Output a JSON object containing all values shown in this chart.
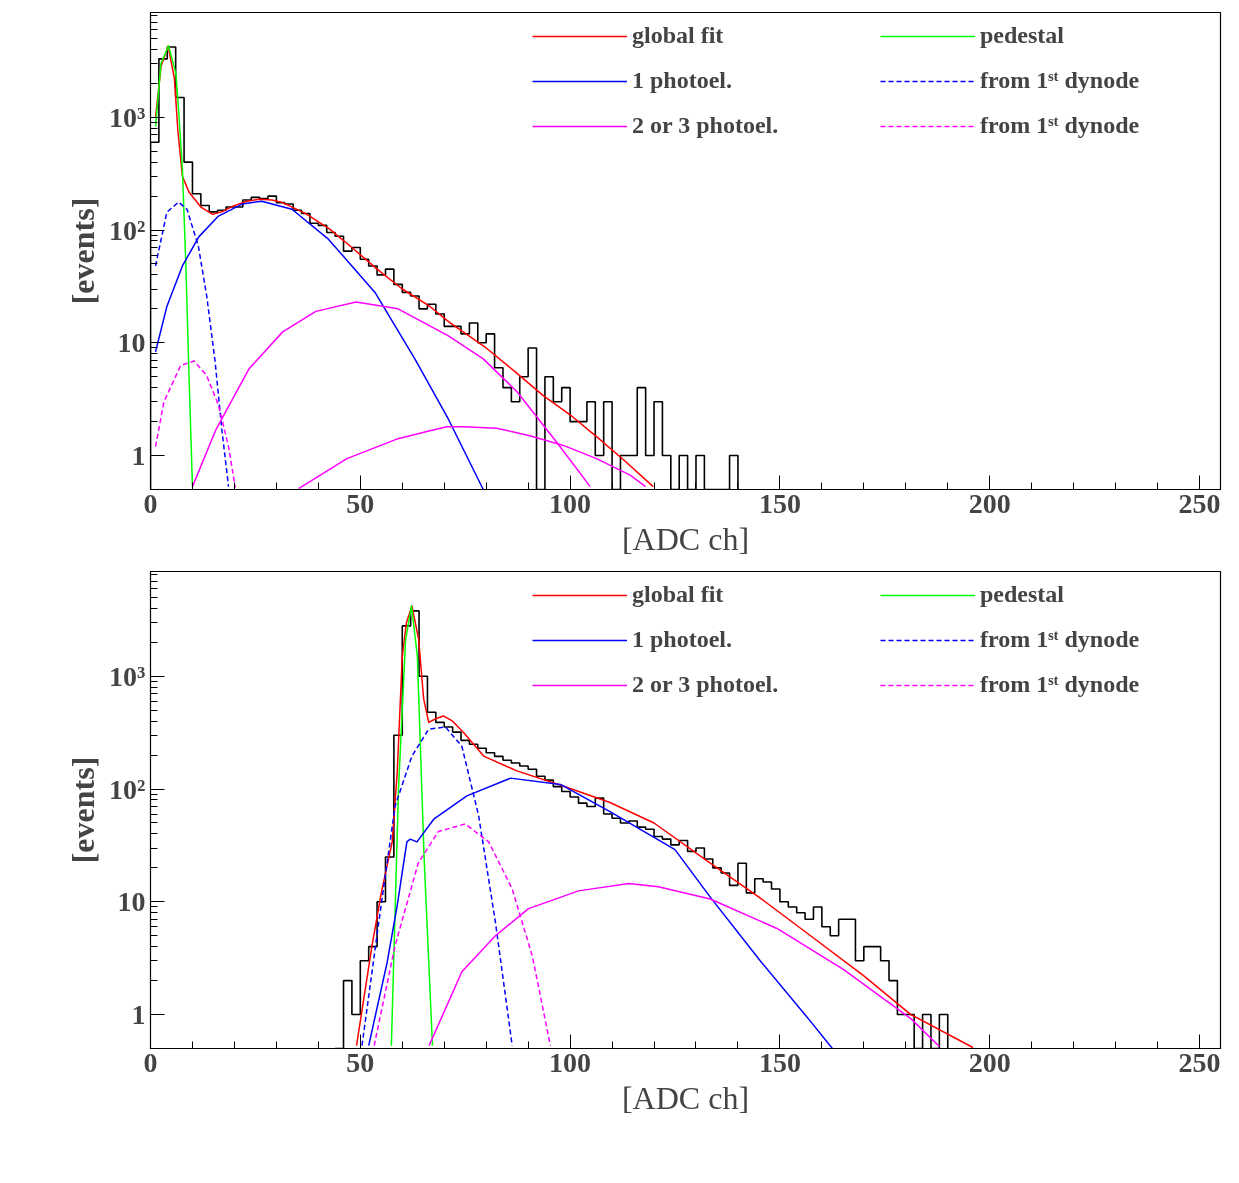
{
  "chart_data": [
    {
      "type": "line",
      "xlabel": "[ADC ch]",
      "ylabel": "[events]",
      "log": "y",
      "legend": "top right",
      "xlim": [
        0,
        255
      ],
      "ylim": [
        0.5,
        8500
      ],
      "xticks": [
        0,
        {
          "value": 10,
          "label": null
        },
        {
          "value": 20,
          "label": null
        },
        {
          "value": 30,
          "label": null
        },
        {
          "value": 40,
          "label": null
        },
        50,
        {
          "value": 60,
          "label": null
        },
        {
          "value": 70,
          "label": null
        },
        {
          "value": 80,
          "label": null
        },
        {
          "value": 90,
          "label": null
        },
        100,
        {
          "value": 110,
          "label": null
        },
        {
          "value": 120,
          "label": null
        },
        {
          "value": 130,
          "label": null
        },
        {
          "value": 140,
          "label": null
        },
        150,
        {
          "value": 160,
          "label": null
        },
        {
          "value": 170,
          "label": null
        },
        {
          "value": 180,
          "label": null
        },
        {
          "value": 190,
          "label": null
        },
        200,
        {
          "value": 210,
          "label": null
        },
        {
          "value": 220,
          "label": null
        },
        {
          "value": 230,
          "label": null
        },
        {
          "value": 240,
          "label": null
        },
        250
      ],
      "yticks": [
        1,
        {
          "value": 2,
          "label": null
        },
        {
          "value": 3,
          "label": null
        },
        {
          "value": 4,
          "label": null
        },
        {
          "value": 5,
          "label": null
        },
        {
          "value": 6,
          "label": null
        },
        {
          "value": 7,
          "label": null
        },
        {
          "value": 8,
          "label": null
        },
        {
          "value": 9,
          "label": null
        },
        10,
        {
          "value": 20,
          "label": null
        },
        {
          "value": 30,
          "label": null
        },
        {
          "value": 40,
          "label": null
        },
        {
          "value": 50,
          "label": null
        },
        {
          "value": 60,
          "label": null
        },
        {
          "value": 70,
          "label": null
        },
        {
          "value": 80,
          "label": null
        },
        {
          "value": 90,
          "label": null
        },
        {
          "value": 100,
          "label": "10²"
        },
        {
          "value": 200,
          "label": null
        },
        {
          "value": 300,
          "label": null
        },
        {
          "value": 400,
          "label": null
        },
        {
          "value": 500,
          "label": null
        },
        {
          "value": 600,
          "label": null
        },
        {
          "value": 700,
          "label": null
        },
        {
          "value": 800,
          "label": null
        },
        {
          "value": 900,
          "label": null
        },
        {
          "value": 1000,
          "label": "10³"
        },
        {
          "value": 2000,
          "label": null
        },
        {
          "value": 3000,
          "label": null
        },
        {
          "value": 4000,
          "label": null
        },
        {
          "value": 5000,
          "label": null
        },
        {
          "value": 6000,
          "label": null
        },
        {
          "value": 7000,
          "label": null
        },
        {
          "value": 8000,
          "label": null
        }
      ],
      "series": [
        {
          "type": "histogram",
          "color": "#000000",
          "bins": [
            0,
            2,
            4,
            6,
            8,
            10,
            12,
            14,
            16,
            18,
            20,
            22,
            24,
            26,
            28,
            30,
            32,
            34,
            36,
            38,
            40,
            42,
            44,
            46,
            48,
            50,
            52,
            54,
            56,
            58,
            60,
            62,
            64,
            66,
            68,
            70,
            72,
            74,
            76,
            78,
            80,
            82,
            84,
            86,
            88,
            90,
            92,
            94,
            96,
            98,
            100,
            102,
            104,
            106,
            108,
            110,
            112,
            114,
            116,
            118,
            120,
            122,
            124,
            126,
            128,
            130,
            132,
            134,
            136,
            138,
            140
          ],
          "values": [
            600,
            3300,
            4200,
            1500,
            400,
            210,
            165,
            145,
            150,
            160,
            160,
            185,
            195,
            190,
            200,
            175,
            170,
            150,
            140,
            115,
            110,
            95,
            88,
            65,
            70,
            55,
            48,
            40,
            45,
            33,
            28,
            26,
            20,
            22,
            18,
            14,
            14,
            12,
            15,
            10,
            12,
            6,
            4,
            3,
            5,
            9,
            null,
            5,
            3,
            4,
            2,
            2,
            3,
            1,
            3,
            null,
            1,
            1,
            4,
            1,
            3,
            1,
            null,
            1,
            null,
            1,
            null,
            null,
            null,
            1
          ]
        },
        {
          "name": "global fit",
          "color": "#ff0000",
          "line_style": "solid",
          "x": [
            1.2,
            2.5,
            4.2,
            5.7,
            6.5,
            7.6,
            9.2,
            12,
            14.8,
            17,
            19.6,
            23,
            26,
            29,
            31.5,
            37,
            42.7,
            48,
            54,
            60,
            66.6,
            71.4,
            80,
            87,
            93.6,
            100,
            107,
            113,
            119.8
          ],
          "values": [
            1000,
            2800,
            4300,
            2200,
            780,
            300,
            216,
            160,
            138,
            145,
            163,
            180,
            188,
            185,
            175,
            140,
            102,
            70,
            45,
            30,
            21,
            15,
            9,
            5.5,
            3.4,
            2.3,
            1.4,
            0.9,
            0.53
          ]
        },
        {
          "name": "pedestal",
          "color": "#00ff00",
          "line_style": "solid",
          "x": [
            1.2,
            2.5,
            4.3,
            6,
            6.5,
            7.6,
            8.4,
            9.2,
            10
          ],
          "values": [
            830,
            3000,
            4300,
            2500,
            1500,
            350,
            52,
            4.8,
            0.53
          ]
        },
        {
          "name": "1 photoel.",
          "color": "#0000ff",
          "line_style": "solid",
          "x": [
            1.2,
            3.9,
            7.6,
            11.5,
            16.2,
            21.8,
            26.5,
            33.7,
            42.4,
            53.5,
            63,
            71,
            79.3
          ],
          "values": [
            8.3,
            21,
            48,
            87,
            133,
            170,
            180,
            153,
            83,
            28,
            7.2,
            2.1,
            0.5
          ]
        },
        {
          "name": "from 1ˢᵗ dynode",
          "color": "#0000ff",
          "line_style": "dashed",
          "x": [
            1.2,
            3.9,
            6.7,
            8.7,
            11.4,
            13.4,
            15.4,
            17,
            18.6
          ],
          "values": [
            48,
            144,
            177,
            153,
            72,
            26,
            6.8,
            1.7,
            0.53
          ]
        },
        {
          "name": "2 or 3 photoel.",
          "color": "#ff00ff",
          "line_style": "solid",
          "x": [
            10,
            15.6,
            23.5,
            31.5,
            39.4,
            49,
            59,
            71,
            79.3,
            87.3,
            96.9,
            104.8
          ],
          "values": [
            0.53,
            1.7,
            5.9,
            12.5,
            19,
            23,
            20,
            11.5,
            7.2,
            3.7,
            1.3,
            0.53
          ]
        },
        {
          "name": "from 1ˢᵗ dynode",
          "color": "#ff00ff",
          "line_style": "dashed",
          "x": [
            1.2,
            3.2,
            7.2,
            10.4,
            13.4,
            16.2,
            18.6,
            20.2
          ],
          "values": [
            1.2,
            3,
            6.3,
            6.9,
            5.1,
            2.8,
            1.2,
            0.52
          ]
        },
        {
          "color": "#ff00ff",
          "line_style": "solid",
          "x": [
            35.3,
            46.8,
            58.7,
            66.6,
            70.6,
            74.5,
            82.5,
            90.4,
            98.4,
            106.3,
            114.3,
            118
          ],
          "values": [
            0.51,
            0.94,
            1.4,
            1.66,
            1.8,
            1.8,
            1.75,
            1.5,
            1.23,
            0.94,
            0.67,
            0.53
          ]
        }
      ]
    },
    {
      "type": "line",
      "xlabel": "[ADC ch]",
      "ylabel": "[events]",
      "log": "y",
      "legend": "top right",
      "xlim": [
        0,
        255
      ],
      "ylim": [
        0.5,
        8500
      ],
      "xticks": [
        0,
        {
          "value": 10,
          "label": null
        },
        {
          "value": 20,
          "label": null
        },
        {
          "value": 30,
          "label": null
        },
        {
          "value": 40,
          "label": null
        },
        50,
        {
          "value": 60,
          "label": null
        },
        {
          "value": 70,
          "label": null
        },
        {
          "value": 80,
          "label": null
        },
        {
          "value": 90,
          "label": null
        },
        100,
        {
          "value": 110,
          "label": null
        },
        {
          "value": 120,
          "label": null
        },
        {
          "value": 130,
          "label": null
        },
        {
          "value": 140,
          "label": null
        },
        150,
        {
          "value": 160,
          "label": null
        },
        {
          "value": 170,
          "label": null
        },
        {
          "value": 180,
          "label": null
        },
        {
          "value": 190,
          "label": null
        },
        200,
        {
          "value": 210,
          "label": null
        },
        {
          "value": 220,
          "label": null
        },
        {
          "value": 230,
          "label": null
        },
        {
          "value": 240,
          "label": null
        },
        250
      ],
      "yticks": [
        1,
        {
          "value": 2,
          "label": null
        },
        {
          "value": 3,
          "label": null
        },
        {
          "value": 4,
          "label": null
        },
        {
          "value": 5,
          "label": null
        },
        {
          "value": 6,
          "label": null
        },
        {
          "value": 7,
          "label": null
        },
        {
          "value": 8,
          "label": null
        },
        {
          "value": 9,
          "label": null
        },
        10,
        {
          "value": 20,
          "label": null
        },
        {
          "value": 30,
          "label": null
        },
        {
          "value": 40,
          "label": null
        },
        {
          "value": 50,
          "label": null
        },
        {
          "value": 60,
          "label": null
        },
        {
          "value": 70,
          "label": null
        },
        {
          "value": 80,
          "label": null
        },
        {
          "value": 90,
          "label": null
        },
        {
          "value": 100,
          "label": "10²"
        },
        {
          "value": 200,
          "label": null
        },
        {
          "value": 300,
          "label": null
        },
        {
          "value": 400,
          "label": null
        },
        {
          "value": 500,
          "label": null
        },
        {
          "value": 600,
          "label": null
        },
        {
          "value": 700,
          "label": null
        },
        {
          "value": 800,
          "label": null
        },
        {
          "value": 900,
          "label": null
        },
        {
          "value": 1000,
          "label": "10³"
        },
        {
          "value": 2000,
          "label": null
        },
        {
          "value": 3000,
          "label": null
        },
        {
          "value": 4000,
          "label": null
        },
        {
          "value": 5000,
          "label": null
        },
        {
          "value": 6000,
          "label": null
        },
        {
          "value": 7000,
          "label": null
        },
        {
          "value": 8000,
          "label": null
        }
      ],
      "series": [
        {
          "type": "histogram",
          "color": "#000000",
          "bins": [
            44,
            46,
            48,
            50,
            52,
            54,
            56,
            58,
            60,
            62,
            64,
            66,
            68,
            70,
            72,
            74,
            76,
            78,
            80,
            82,
            84,
            86,
            88,
            90,
            92,
            94,
            96,
            98,
            100,
            102,
            104,
            106,
            108,
            110,
            112,
            114,
            116,
            118,
            120,
            122,
            124,
            126,
            128,
            130,
            132,
            134,
            136,
            138,
            140,
            142,
            144,
            146,
            148,
            150,
            152,
            154,
            156,
            158,
            160,
            162,
            164,
            166,
            168,
            170,
            172,
            174,
            176,
            178,
            180,
            182,
            184,
            186,
            188,
            190
          ],
          "values": [
            null,
            2,
            1,
            3,
            4,
            10,
            25,
            300,
            2800,
            3800,
            1000,
            480,
            390,
            355,
            320,
            270,
            250,
            230,
            210,
            195,
            180,
            170,
            160,
            150,
            130,
            120,
            105,
            95,
            85,
            75,
            70,
            83,
            60,
            55,
            50,
            52,
            46,
            44,
            38,
            36,
            32,
            35,
            28,
            30,
            24,
            20,
            18,
            14,
            22,
            12,
            16,
            15,
            13,
            10,
            9,
            8,
            7,
            9,
            6,
            5,
            7,
            7,
            3,
            4,
            4,
            3,
            2,
            1,
            1,
            null,
            1,
            null,
            1
          ]
        },
        {
          "name": "global fit",
          "color": "#ff0000",
          "line_style": "solid",
          "x": [
            49.1,
            52.8,
            55,
            57.6,
            58.8,
            60,
            61,
            62.3,
            63.9,
            65.1,
            66.3,
            68,
            69.8,
            72,
            74.6,
            79.4,
            87.3,
            98.5,
            109.5,
            120,
            133.4,
            145,
            157.3,
            170,
            181.2,
            196
          ],
          "values": [
            0.53,
            4.1,
            12,
            34,
            141,
            1500,
            3000,
            4200,
            2130,
            630,
            390,
            420,
            445,
            400,
            318,
            196,
            145,
            106,
            76,
            50,
            22,
            11,
            5,
            2.2,
            1.0,
            0.51
          ]
        },
        {
          "name": "pedestal",
          "color": "#00ff00",
          "line_style": "solid",
          "x": [
            57.4,
            59.1,
            60.8,
            62.2,
            63.6,
            65.2,
            67.2
          ],
          "values": [
            0.53,
            100,
            2130,
            4200,
            1500,
            25,
            0.53
          ]
        },
        {
          "name": "1 photoel.",
          "color": "#0000ff",
          "line_style": "solid",
          "x": [
            52,
            56.4,
            58.8,
            61.1,
            61.9,
            63.5,
            67.5,
            75.4,
            85.8,
            97.7,
            109.5,
            125,
            133.4,
            145.3,
            157.3,
            162.5
          ],
          "values": [
            0.53,
            2.9,
            9.3,
            34,
            36,
            34,
            54,
            87,
            125,
            110,
            63,
            29,
            11,
            3,
            0.87,
            0.5
          ]
        },
        {
          "name": "from 1ˢᵗ dynode",
          "color": "#0000ff",
          "line_style": "dashed",
          "x": [
            50.4,
            54.4,
            58.3,
            62.3,
            66.3,
            70.3,
            74.2,
            78.2,
            82.2,
            86.2
          ],
          "values": [
            0.53,
            6.6,
            71,
            196,
            340,
            355,
            240,
            58,
            6.6,
            0.53
          ]
        },
        {
          "name": "2 or 3 photoel.",
          "color": "#ff00ff",
          "line_style": "solid",
          "x": [
            66.4,
            74.2,
            82.2,
            90.1,
            102,
            114,
            121,
            133.4,
            149.3,
            165.2,
            181.2,
            188
          ],
          "values": [
            0.53,
            2.4,
            5,
            8.7,
            12.5,
            14.5,
            13.6,
            10.6,
            5.8,
            2.5,
            0.92,
            0.52
          ]
        },
        {
          "name": "from 1ˢᵗ dynode",
          "color": "#ff00ff",
          "line_style": "dashed",
          "x": [
            53.3,
            58.3,
            63.8,
            68.6,
            75,
            80.6,
            86.2,
            91,
            95.3
          ],
          "values": [
            0.53,
            4.1,
            22,
            42,
            49,
            34,
            13,
            3.3,
            0.53
          ]
        }
      ]
    }
  ]
}
